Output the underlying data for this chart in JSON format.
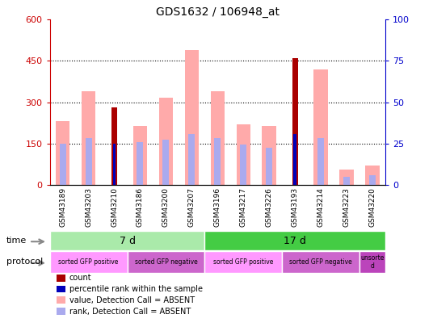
{
  "title": "GDS1632 / 106948_at",
  "samples": [
    "GSM43189",
    "GSM43203",
    "GSM43210",
    "GSM43186",
    "GSM43200",
    "GSM43207",
    "GSM43196",
    "GSM43217",
    "GSM43226",
    "GSM43193",
    "GSM43214",
    "GSM43223",
    "GSM43220"
  ],
  "value_absent": [
    230,
    340,
    0,
    215,
    315,
    490,
    340,
    220,
    215,
    0,
    420,
    55,
    70
  ],
  "rank_absent": [
    150,
    170,
    0,
    155,
    165,
    185,
    170,
    145,
    135,
    0,
    170,
    30,
    35
  ],
  "count": [
    0,
    0,
    280,
    0,
    0,
    0,
    0,
    0,
    0,
    460,
    0,
    0,
    0
  ],
  "percentile_rank": [
    0,
    0,
    150,
    0,
    0,
    0,
    0,
    0,
    0,
    185,
    0,
    0,
    0
  ],
  "ylim_left": [
    0,
    600
  ],
  "ylim_right": [
    0,
    100
  ],
  "yticks_left": [
    0,
    150,
    300,
    450,
    600
  ],
  "yticks_right": [
    0,
    25,
    50,
    75,
    100
  ],
  "time_groups": [
    {
      "label": "7 d",
      "start": 0,
      "end": 5,
      "color": "#aaeaaa"
    },
    {
      "label": "17 d",
      "start": 6,
      "end": 12,
      "color": "#44cc44"
    }
  ],
  "protocol_groups": [
    {
      "label": "sorted GFP positive",
      "start": 0,
      "end": 2,
      "color": "#ff99ff"
    },
    {
      "label": "sorted GFP negative",
      "start": 3,
      "end": 5,
      "color": "#cc66cc"
    },
    {
      "label": "sorted GFP positive",
      "start": 6,
      "end": 8,
      "color": "#ff99ff"
    },
    {
      "label": "sorted GFP negative",
      "start": 9,
      "end": 11,
      "color": "#cc66cc"
    },
    {
      "label": "unsorte\nd",
      "start": 12,
      "end": 12,
      "color": "#bb44bb"
    }
  ],
  "color_count": "#aa0000",
  "color_percentile": "#0000bb",
  "color_value_absent": "#ffaaaa",
  "color_rank_absent": "#aaaaee",
  "legend_items": [
    {
      "label": "count",
      "color": "#aa0000"
    },
    {
      "label": "percentile rank within the sample",
      "color": "#0000bb"
    },
    {
      "label": "value, Detection Call = ABSENT",
      "color": "#ffaaaa"
    },
    {
      "label": "rank, Detection Call = ABSENT",
      "color": "#aaaaee"
    }
  ],
  "bg_color": "#ffffff",
  "left_axis_color": "#cc0000",
  "right_axis_color": "#0000cc",
  "xtick_bg": "#cccccc"
}
